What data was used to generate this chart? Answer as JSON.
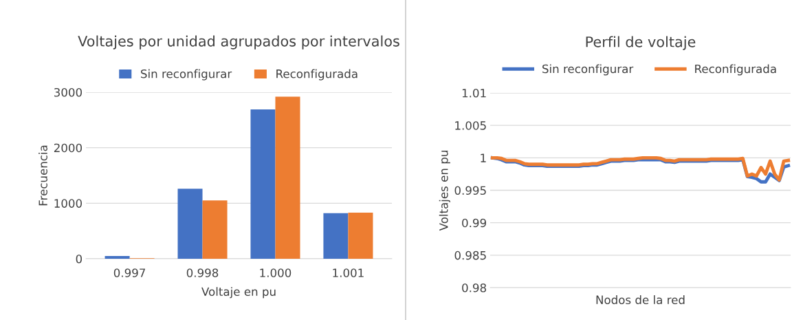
{
  "chart_data": [
    {
      "type": "bar",
      "title": "Voltajes por unidad agrupados por intervalos",
      "xlabel": "Voltaje en pu",
      "ylabel": "Frecuencia",
      "categories": [
        "0.997",
        "0.998",
        "1.000",
        "1.001"
      ],
      "series": [
        {
          "name": "Sin reconfigurar",
          "color": "#4472c4",
          "values": [
            50,
            1260,
            2690,
            820
          ]
        },
        {
          "name": "Reconfigurada",
          "color": "#ed7d31",
          "values": [
            10,
            1050,
            2920,
            830
          ]
        }
      ],
      "ylim": [
        0,
        3000
      ],
      "yticks": [
        0,
        1000,
        2000,
        3000
      ],
      "grid": "y",
      "legend": "top"
    },
    {
      "type": "line",
      "title": "Perfil de voltaje",
      "xlabel": "Nodos de la red",
      "ylabel": "Voltajes en pu",
      "categories": [
        null,
        null,
        null,
        null,
        null,
        null,
        null,
        null,
        null,
        null,
        null,
        null,
        null,
        null,
        null,
        null,
        null,
        null,
        null,
        null,
        null,
        null,
        null,
        null,
        null,
        null,
        null,
        null,
        null,
        null,
        null,
        null,
        null,
        null,
        null,
        null,
        null,
        null,
        null,
        null,
        null,
        null,
        null,
        null,
        null,
        null,
        null,
        null,
        null,
        null,
        null,
        null,
        null,
        null,
        null,
        null,
        null,
        null,
        null,
        null,
        null,
        null,
        null,
        null,
        null,
        null
      ],
      "series": [
        {
          "name": "Sin reconfigurar",
          "color": "#4472c4",
          "values": [
            1.0,
            0.9999,
            0.9997,
            0.9994,
            0.9994,
            0.9994,
            0.9992,
            0.9989,
            0.9988,
            0.9988,
            0.9988,
            0.9988,
            0.9987,
            0.9987,
            0.9987,
            0.9987,
            0.9987,
            0.9987,
            0.9987,
            0.9987,
            0.9988,
            0.9988,
            0.9989,
            0.9989,
            0.9991,
            0.9993,
            0.9995,
            0.9995,
            0.9995,
            0.9996,
            0.9996,
            0.9996,
            0.9997,
            0.9997,
            0.9997,
            0.9997,
            0.9997,
            0.9997,
            0.9994,
            0.9994,
            0.9993,
            0.9995,
            0.9995,
            0.9995,
            0.9995,
            0.9995,
            0.9995,
            0.9995,
            0.9996,
            0.9996,
            0.9996,
            0.9996,
            0.9996,
            0.9996,
            0.9996,
            0.9997,
            0.9971,
            0.997,
            0.9968,
            0.9963,
            0.9963,
            0.9975,
            0.997,
            0.9965,
            0.9986,
            0.9988
          ]
        },
        {
          "name": "Reconfigurada",
          "color": "#ed7d31",
          "values": [
            1.0,
            1.0,
            0.9999,
            0.9996,
            0.9996,
            0.9996,
            0.9994,
            0.9991,
            0.999,
            0.999,
            0.999,
            0.999,
            0.9989,
            0.9989,
            0.9989,
            0.9989,
            0.9989,
            0.9989,
            0.9989,
            0.9989,
            0.999,
            0.999,
            0.9991,
            0.9991,
            0.9993,
            0.9995,
            0.9997,
            0.9997,
            0.9997,
            0.9998,
            0.9998,
            0.9998,
            0.9999,
            1.0,
            1.0,
            1.0,
            1.0,
            0.9999,
            0.9996,
            0.9996,
            0.9995,
            0.9997,
            0.9997,
            0.9997,
            0.9997,
            0.9997,
            0.9997,
            0.9997,
            0.9998,
            0.9998,
            0.9998,
            0.9998,
            0.9998,
            0.9998,
            0.9998,
            0.9999,
            0.9972,
            0.9975,
            0.9972,
            0.9985,
            0.9975,
            0.9995,
            0.9975,
            0.9966,
            0.9995,
            0.9996
          ]
        }
      ],
      "ylim": [
        0.98,
        1.01
      ],
      "yticks": [
        0.98,
        0.985,
        0.99,
        0.995,
        1,
        1.005,
        1.01
      ],
      "grid": "y",
      "legend": "top",
      "tick_labels": "y"
    }
  ]
}
